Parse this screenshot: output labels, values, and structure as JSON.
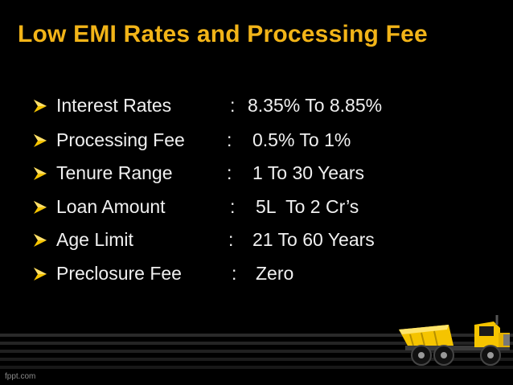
{
  "slide": {
    "title": "Low EMI Rates and Processing Fee",
    "items": [
      {
        "label": "Interest Rates",
        "separator": ":",
        "value": "8.35% To 8.85%"
      },
      {
        "label": "Processing Fee",
        "separator": ":",
        "value": "0.5% To 1%"
      },
      {
        "label": "Tenure Range",
        "separator": ":",
        "value": "1 To 30 Years"
      },
      {
        "label": "Loan Amount",
        "separator": ":",
        "value": "5L  To 2 Cr’s"
      },
      {
        "label": "Age Limit",
        "separator": ":",
        "value": "21 To 60 Years"
      },
      {
        "label": "Preclosure Fee",
        "separator": ":",
        "value": "Zero"
      }
    ],
    "watermark": "fppt.com"
  },
  "colors": {
    "background": "#000000",
    "title": "#f2b418",
    "text": "#f0f0f0",
    "accent": "#f5c400"
  },
  "icons": {
    "bullet": "arrowhead-bullet-icon",
    "decoration": "dump-truck-icon"
  }
}
